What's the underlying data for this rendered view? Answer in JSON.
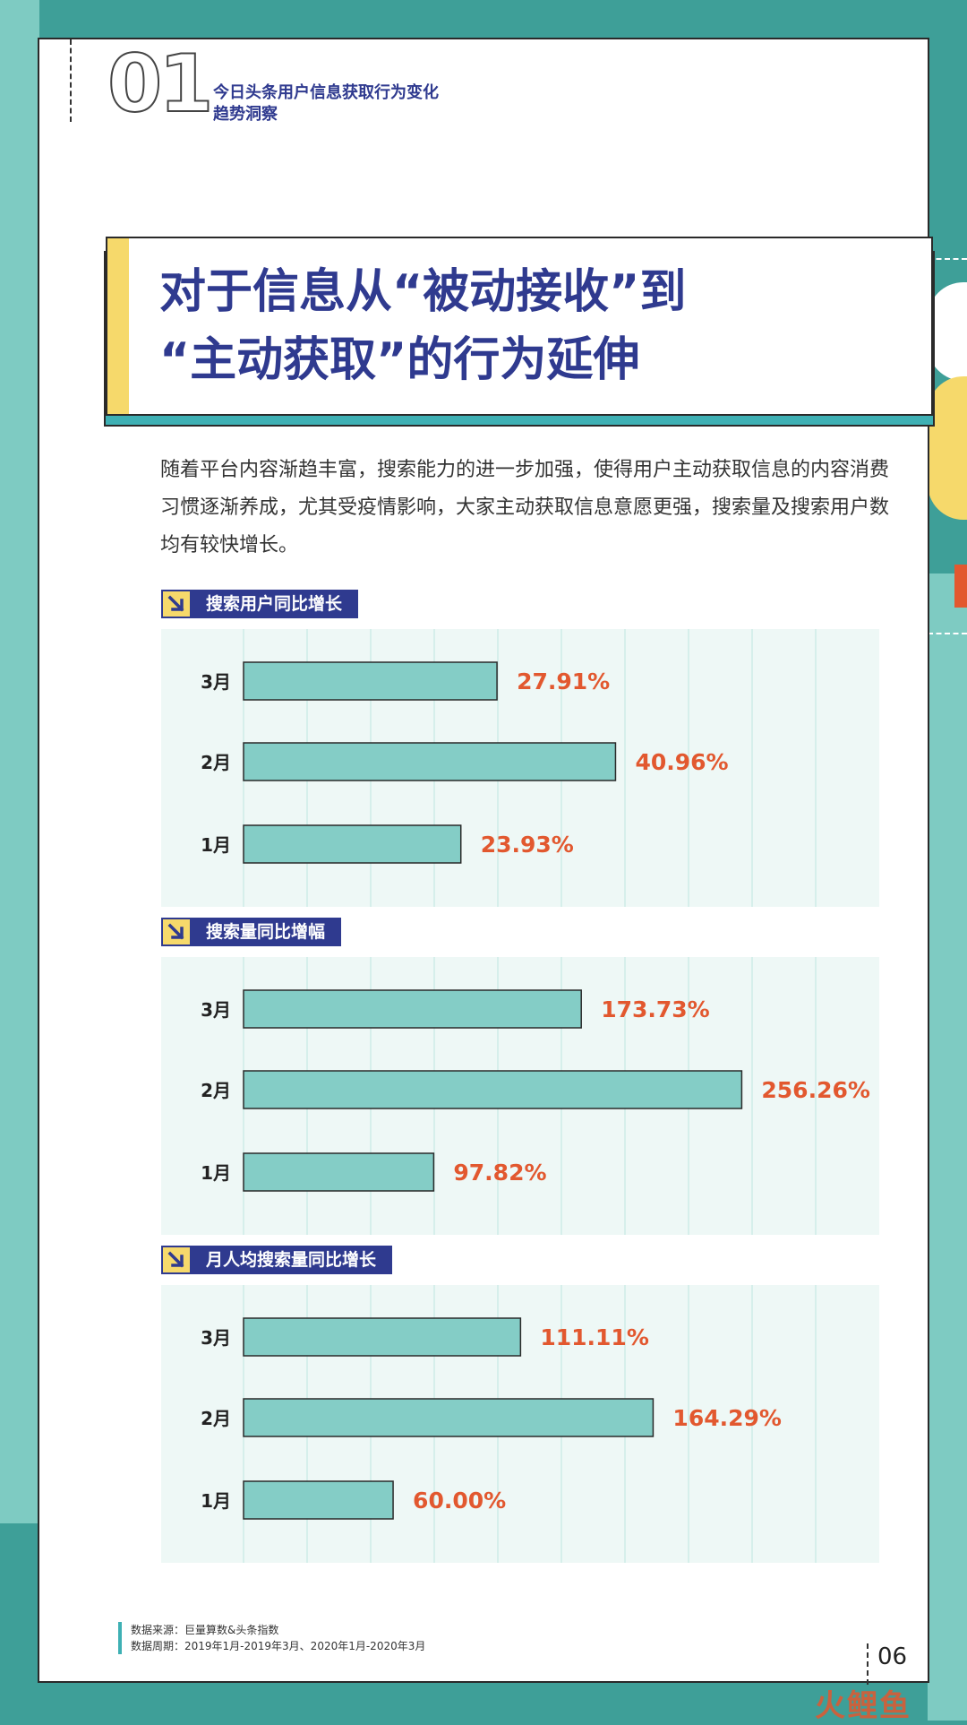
{
  "header": {
    "chapter_number": "01",
    "chapter_title": "今日头条用户信息获取行为变化趋势洞察"
  },
  "headline": {
    "line1": "对于信息从“被动接收”到",
    "line2": "“主动获取”的行为延伸"
  },
  "intro": "随着平台内容渐趋丰富，搜索能力的进一步加强，使得用户主动获取信息的内容消费习惯逐渐养成，尤其受疫情影响，大家主动获取信息意愿更强，搜索量及搜索用户数均有较快增长。",
  "colors": {
    "bar_fill": "#84cdc6",
    "value_label": "#e2582f",
    "tag_bg": "#2f3a8f",
    "tag_icon": "#f6d96b",
    "grid_bg": "#eef8f6",
    "grid_line": "#bfe6e0"
  },
  "chart_data": [
    {
      "type": "bar",
      "orientation": "horizontal",
      "title": "搜索用户同比增长",
      "categories": [
        "3月",
        "2月",
        "1月"
      ],
      "values": [
        27.91,
        40.96,
        23.93
      ],
      "value_labels": [
        "27.91%",
        "40.96%",
        "23.93%"
      ],
      "xlim": [
        0,
        70
      ],
      "grid": true
    },
    {
      "type": "bar",
      "orientation": "horizontal",
      "title": "搜索量同比增幅",
      "categories": [
        "3月",
        "2月",
        "1月"
      ],
      "values": [
        173.73,
        256.26,
        97.82
      ],
      "value_labels": [
        "173.73%",
        "256.26%",
        "97.82%"
      ],
      "xlim": [
        0,
        327
      ],
      "grid": true
    },
    {
      "type": "bar",
      "orientation": "horizontal",
      "title": "月人均搜索量同比增长",
      "categories": [
        "3月",
        "2月",
        "1月"
      ],
      "values": [
        111.11,
        164.29,
        60.0
      ],
      "value_labels": [
        "111.11%",
        "164.29%",
        "60.00%"
      ],
      "xlim": [
        0,
        255
      ],
      "grid": true
    }
  ],
  "footnote": {
    "source": "数据来源：巨量算数&头条指数",
    "period": "数据周期：2019年1月-2019年3月、2020年1月-2020年3月"
  },
  "page_number": "06",
  "watermark": "火鲤鱼"
}
